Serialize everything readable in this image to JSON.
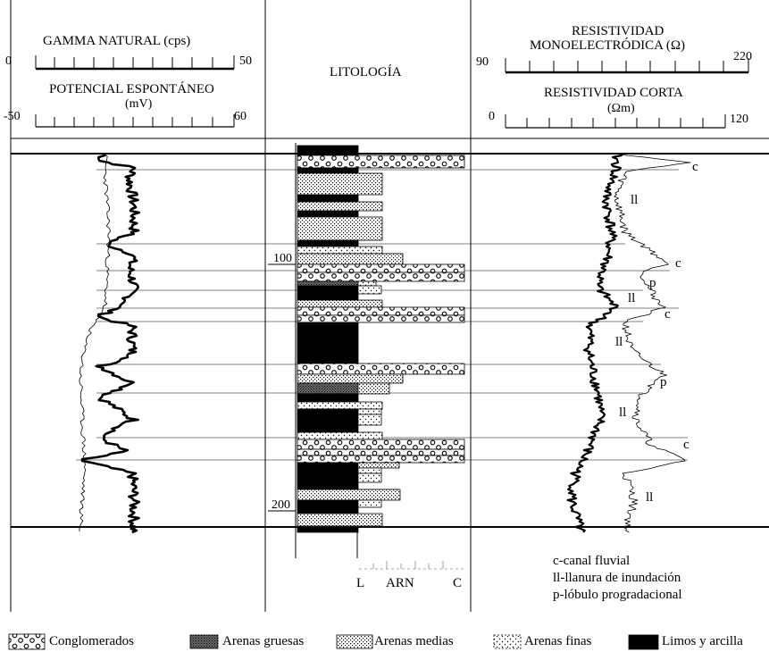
{
  "left_header": {
    "gamma_title": "GAMMA NATURAL (cps)",
    "gamma_min": "0",
    "gamma_max": "50",
    "sp_title": "POTENCIAL ESPONTÁNEO",
    "sp_unit": "(mV)",
    "sp_min": "-50",
    "sp_max": "60"
  },
  "center_header": {
    "title": "LITOLOGÍA"
  },
  "right_header": {
    "res_mono_title_1": "RESISTIVIDAD",
    "res_mono_title_2": "MONOELECTRÓDICA (Ω)",
    "res_mono_min": "90",
    "res_mono_max": "220",
    "res_short_title": "RESISTIVIDAD CORTA",
    "res_short_unit": "(Ωm)",
    "res_short_min": "0",
    "res_short_max": "120"
  },
  "depth_labels": [
    "100",
    "200"
  ],
  "facies_labels": [
    "c",
    "ll",
    "c",
    "p",
    "ll",
    "c",
    "ll",
    "p",
    "ll",
    "c",
    "ll"
  ],
  "grain_scale": {
    "l": "L",
    "arn": "ARN",
    "c": "C"
  },
  "facies_key": [
    "c-canal fluvial",
    "ll-llanura de inundación",
    "p-lóbulo progradacional"
  ],
  "legend": [
    {
      "name": "Conglomerados",
      "pattern": "conglomerate"
    },
    {
      "name": "Arenas gruesas",
      "pattern": "coarse-sand"
    },
    {
      "name": "Arenas medias",
      "pattern": "medium-sand"
    },
    {
      "name": "Arenas finas",
      "pattern": "fine-sand"
    },
    {
      "name": "Limos y arcilla",
      "pattern": "silt-clay"
    }
  ],
  "colors": {
    "line": "#000000",
    "background": "#ffffff"
  }
}
